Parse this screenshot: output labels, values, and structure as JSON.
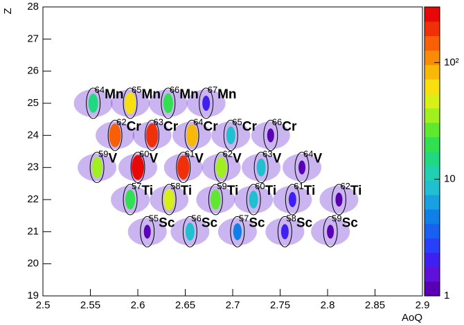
{
  "chart_data": {
    "type": "heatmap",
    "x_label": "AoQ",
    "y_label": "Z",
    "xlim": [
      2.5,
      2.9
    ],
    "xticks": [
      2.5,
      2.55,
      2.6,
      2.65,
      2.7,
      2.75,
      2.8,
      2.85,
      2.9
    ],
    "ylim": [
      19,
      28
    ],
    "yticks": [
      19,
      20,
      21,
      22,
      23,
      24,
      25,
      26,
      27,
      28
    ],
    "zlim": [
      1,
      300
    ],
    "zscale": "log",
    "zticks": [
      1,
      10,
      {
        "value": 100,
        "label": "10²"
      }
    ],
    "palette": [
      "#5a00b4",
      "#6010d8",
      "#4020f0",
      "#2840f8",
      "#1860f0",
      "#1080e8",
      "#18a0e0",
      "#20c0d0",
      "#20d0b0",
      "#20d880",
      "#30e050",
      "#60e830",
      "#a0f020",
      "#d8f018",
      "#f8e010",
      "#f8b808",
      "#f88c08",
      "#f86008",
      "#f03008",
      "#e80808"
    ],
    "clusters": [
      {
        "mass": "64",
        "element": "Mn",
        "x": 2.553,
        "y": 25,
        "counts": 15
      },
      {
        "mass": "65",
        "element": "Mn",
        "x": 2.592,
        "y": 25,
        "counts": 60
      },
      {
        "mass": "66",
        "element": "Mn",
        "x": 2.632,
        "y": 25,
        "counts": 20
      },
      {
        "mass": "67",
        "element": "Mn",
        "x": 2.672,
        "y": 25,
        "counts": 2
      },
      {
        "mass": "62",
        "element": "Cr",
        "x": 2.576,
        "y": 24,
        "counts": 150
      },
      {
        "mass": "63",
        "element": "Cr",
        "x": 2.615,
        "y": 24,
        "counts": 200
      },
      {
        "mass": "64",
        "element": "Cr",
        "x": 2.657,
        "y": 24,
        "counts": 80
      },
      {
        "mass": "65",
        "element": "Cr",
        "x": 2.698,
        "y": 24,
        "counts": 8
      },
      {
        "mass": "66",
        "element": "Cr",
        "x": 2.74,
        "y": 24,
        "counts": 1
      },
      {
        "mass": "59",
        "element": "V",
        "x": 2.557,
        "y": 23,
        "counts": 40
      },
      {
        "mass": "60",
        "element": "V",
        "x": 2.6,
        "y": 23,
        "counts": 300
      },
      {
        "mass": "61",
        "element": "V",
        "x": 2.648,
        "y": 23,
        "counts": 200
      },
      {
        "mass": "62",
        "element": "V",
        "x": 2.688,
        "y": 23,
        "counts": 40
      },
      {
        "mass": "63",
        "element": "V",
        "x": 2.73,
        "y": 23,
        "counts": 8
      },
      {
        "mass": "64",
        "element": "V",
        "x": 2.773,
        "y": 23,
        "counts": 1
      },
      {
        "mass": "57",
        "element": "Ti",
        "x": 2.592,
        "y": 22,
        "counts": 20
      },
      {
        "mass": "58",
        "element": "Ti",
        "x": 2.633,
        "y": 22,
        "counts": 50
      },
      {
        "mass": "59",
        "element": "Ti",
        "x": 2.682,
        "y": 22,
        "counts": 25
      },
      {
        "mass": "60",
        "element": "Ti",
        "x": 2.722,
        "y": 22,
        "counts": 8
      },
      {
        "mass": "61",
        "element": "Ti",
        "x": 2.763,
        "y": 22,
        "counts": 2
      },
      {
        "mass": "62",
        "element": "Ti",
        "x": 2.812,
        "y": 22,
        "counts": 1
      },
      {
        "mass": "55",
        "element": "Sc",
        "x": 2.61,
        "y": 21,
        "counts": 1
      },
      {
        "mass": "56",
        "element": "Sc",
        "x": 2.655,
        "y": 21,
        "counts": 8
      },
      {
        "mass": "57",
        "element": "Sc",
        "x": 2.705,
        "y": 21,
        "counts": 5
      },
      {
        "mass": "58",
        "element": "Sc",
        "x": 2.755,
        "y": 21,
        "counts": 2
      },
      {
        "mass": "59",
        "element": "Sc",
        "x": 2.803,
        "y": 21,
        "counts": 1
      }
    ]
  }
}
